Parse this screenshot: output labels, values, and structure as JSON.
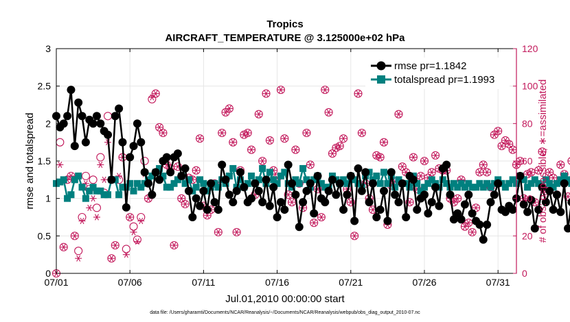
{
  "chart_data": {
    "type": "line",
    "title": "Tropics",
    "subtitle": "AIRCRAFT_TEMPERATURE @ 3.125000e+02 hPa",
    "xlabel": "Jul.01,2010 00:00:00 start",
    "ylabel": "rmse and totalspread",
    "ylabel_right": "# of obs: o=possible; ∗=assimilated",
    "footer": "data file: /Users/gharamti/Documents/NCAR/Reanalysis/~/Documents/NCAR/Reanalysis/webpub/obs_diag_output_2010-07.nc",
    "xlim": [
      0,
      31.25
    ],
    "ylim": [
      0,
      3
    ],
    "ylim_right": [
      0,
      120
    ],
    "x_ticks": [
      0,
      5,
      10,
      15,
      20,
      25,
      30
    ],
    "x_tick_labels": [
      "07/01",
      "07/06",
      "07/11",
      "07/16",
      "07/21",
      "07/26",
      "07/31"
    ],
    "y_ticks": [
      0,
      0.5,
      1,
      1.5,
      2,
      2.5,
      3
    ],
    "y_tick_labels": [
      "0",
      "0.5",
      "1",
      "1.5",
      "2",
      "2.5",
      "3"
    ],
    "y_ticks_right": [
      0,
      20,
      40,
      60,
      80,
      100,
      120
    ],
    "y_tick_labels_right": [
      "0",
      "20",
      "40",
      "60",
      "80",
      "100",
      "120"
    ],
    "grid": true,
    "legend_position": "top-right",
    "colors": {
      "rmse": "#000000",
      "totalspread": "#00807f",
      "obs": "#c2185b"
    },
    "x_step_days": 0.25,
    "series": [
      {
        "name": "rmse",
        "legend": "rmse pr=1.1842",
        "marker": "circle",
        "values": [
          2.1,
          1.95,
          2.0,
          2.1,
          2.45,
          1.7,
          2.28,
          2.1,
          1.75,
          2.05,
          2.0,
          2.1,
          2.0,
          1.9,
          1.85,
          1.25,
          2.1,
          2.2,
          1.75,
          0.88,
          1.55,
          1.7,
          2.0,
          1.75,
          1.35,
          1.2,
          1.05,
          1.35,
          1.25,
          1.5,
          1.55,
          1.35,
          1.55,
          1.6,
          1.3,
          1.4,
          1.1,
          0.75,
          1.0,
          0.9,
          1.1,
          0.85,
          1.2,
          0.95,
          0.85,
          1.45,
          1.25,
          1.05,
          0.95,
          1.1,
          1.35,
          1.15,
          0.95,
          1.0,
          1.2,
          1.1,
          0.95,
          1.25,
          0.9,
          1.15,
          0.75,
          0.95,
          0.85,
          1.45,
          1.2,
          1.05,
          0.62,
          0.95,
          1.1,
          1.2,
          0.8,
          1.3,
          1.0,
          0.95,
          1.1,
          1.25,
          1.05,
          1.2,
          0.85,
          1.05,
          1.3,
          0.7,
          1.4,
          1.1,
          1.35,
          0.95,
          1.2,
          0.75,
          0.85,
          1.1,
          0.7,
          1.35,
          1.05,
          0.95,
          1.2,
          0.75,
          1.3,
          1.25,
          0.85,
          1.0,
          1.05,
          0.8,
          0.95,
          1.15,
          0.9,
          1.4,
          1.45,
          1.05,
          0.72,
          0.8,
          0.72,
          0.92,
          1.05,
          0.8,
          0.7,
          0.65,
          0.45,
          0.65,
          0.95,
          1.05,
          1.2,
          0.85,
          0.82,
          0.9,
          0.85,
          1.0,
          1.3,
          0.92,
          0.82,
          0.98,
          0.6,
          0.85,
          1.15,
          0.95,
          1.1,
          0.85,
          1.05,
          0.82,
          1.2,
          0.6,
          0.95,
          1.05,
          1.1,
          1.2,
          0.95
        ],
        "legend_value": 1.1842
      },
      {
        "name": "totalspread",
        "legend": "totalspread pr=1.1993",
        "marker": "square",
        "values": [
          1.2,
          1.22,
          1.25,
          1.0,
          1.05,
          1.25,
          1.3,
          1.15,
          1.0,
          1.1,
          1.15,
          1.1,
          1.1,
          1.05,
          1.05,
          1.25,
          1.25,
          1.05,
          1.15,
          1.15,
          1.2,
          1.1,
          1.2,
          1.15,
          1.2,
          1.25,
          1.3,
          1.35,
          1.4,
          1.3,
          1.15,
          1.15,
          1.2,
          1.25,
          1.3,
          1.2,
          1.25,
          1.1,
          1.15,
          1.25,
          1.2,
          1.1,
          1.15,
          1.2,
          1.15,
          1.25,
          1.2,
          1.3,
          1.4,
          1.15,
          1.25,
          1.15,
          1.2,
          1.3,
          1.2,
          1.25,
          1.4,
          1.2,
          1.35,
          1.25,
          1.2,
          1.3,
          1.35,
          1.2,
          1.15,
          1.25,
          1.2,
          1.4,
          1.25,
          1.15,
          1.25,
          1.3,
          1.2,
          1.15,
          1.15,
          1.3,
          1.25,
          1.2,
          1.25,
          1.2,
          1.3,
          1.25,
          1.2,
          1.15,
          1.3,
          1.35,
          1.25,
          1.3,
          1.2,
          1.35,
          1.2,
          1.3,
          1.15,
          1.25,
          1.2,
          1.2,
          1.15,
          1.3,
          1.2,
          1.1,
          1.15,
          1.2,
          1.25,
          1.2,
          1.15,
          1.25,
          1.2,
          1.15,
          1.2,
          1.15,
          1.2,
          1.15,
          1.2,
          1.15,
          1.15,
          1.2,
          1.15,
          1.2,
          1.15,
          1.2,
          1.25,
          1.2,
          1.15,
          1.2,
          1.25,
          1.2,
          1.3,
          1.25,
          1.15,
          1.2,
          1.25,
          1.2,
          1.15,
          1.25,
          1.2,
          1.15,
          1.2,
          1.25,
          1.3,
          1.25,
          1.2,
          1.1,
          1.45,
          1.15,
          1.2
        ],
        "legend_value": 1.1993
      },
      {
        "name": "obs_possible",
        "marker": "open-circle",
        "axis": "right",
        "values": [
          0,
          70,
          14,
          50,
          52,
          20,
          12,
          30,
          52,
          45,
          50,
          35,
          62,
          43,
          84,
          8,
          15,
          50,
          62,
          13,
          30,
          25,
          18,
          30,
          60,
          40,
          93,
          96,
          78,
          75,
          58,
          56,
          15,
          57,
          40,
          37,
          51,
          50,
          55,
          72,
          36,
          31,
          34,
          48,
          22,
          75,
          86,
          88,
          70,
          22,
          55,
          74,
          75,
          66,
          42,
          85,
          60,
          96,
          71,
          55,
          51,
          98,
          72,
          42,
          38,
          66,
          48,
          35,
          75,
          58,
          27,
          45,
          30,
          98,
          86,
          64,
          67,
          68,
          72,
          45,
          38,
          20,
          96,
          75,
          48,
          40,
          34,
          63,
          62,
          70,
          26,
          47,
          49,
          85,
          57,
          54,
          38,
          62,
          45,
          52,
          60,
          51,
          54,
          63,
          56,
          55,
          55,
          40,
          38,
          40,
          50,
          25,
          27,
          22,
          35,
          54,
          58,
          54,
          46,
          74,
          76,
          68,
          71,
          69,
          66,
          58,
          60,
          40,
          53,
          54,
          38,
          55,
          65,
          44,
          54,
          51,
          42,
          58,
          53,
          41,
          60,
          46,
          34,
          119,
          26,
          74,
          42
        ],
        "legend_value": null
      },
      {
        "name": "obs_assimilated",
        "marker": "asterisk",
        "axis": "right",
        "values": [
          0,
          58,
          14,
          50,
          52,
          20,
          8,
          28,
          48,
          35,
          40,
          30,
          58,
          50,
          70,
          8,
          15,
          52,
          62,
          10,
          30,
          22,
          17,
          28,
          53,
          40,
          94,
          96,
          78,
          75,
          58,
          56,
          15,
          57,
          40,
          37,
          51,
          50,
          55,
          72,
          36,
          31,
          34,
          48,
          22,
          75,
          86,
          88,
          70,
          22,
          55,
          74,
          75,
          66,
          42,
          85,
          60,
          96,
          71,
          55,
          51,
          98,
          72,
          42,
          38,
          66,
          48,
          35,
          75,
          58,
          27,
          45,
          30,
          98,
          86,
          64,
          67,
          68,
          72,
          45,
          38,
          20,
          96,
          75,
          48,
          40,
          34,
          63,
          62,
          70,
          26,
          47,
          49,
          85,
          57,
          54,
          38,
          62,
          45,
          52,
          60,
          51,
          54,
          63,
          56,
          55,
          55,
          40,
          38,
          40,
          50,
          25,
          27,
          22,
          35,
          54,
          58,
          54,
          46,
          74,
          76,
          68,
          71,
          69,
          66,
          58,
          60,
          40,
          53,
          54,
          38,
          55,
          65,
          44,
          54,
          51,
          42,
          58,
          53,
          41,
          60,
          46,
          34,
          115,
          26,
          74,
          42
        ],
        "legend_value": null
      }
    ]
  }
}
